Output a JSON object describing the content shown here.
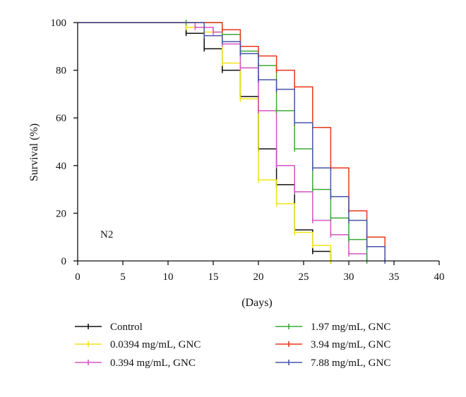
{
  "chart_data": {
    "type": "line",
    "step": true,
    "title": "",
    "xlabel": "(Days)",
    "ylabel": "Survival (%)",
    "xlim": [
      0,
      40
    ],
    "ylim": [
      0,
      100
    ],
    "x_ticks": [
      0,
      5,
      10,
      15,
      20,
      25,
      30,
      35,
      40
    ],
    "y_ticks": [
      0,
      20,
      40,
      60,
      80,
      100
    ],
    "grid": false,
    "legend_position": "bottom",
    "annotation": "N2",
    "series": [
      {
        "name": "Control",
        "color": "#111111",
        "x": [
          0,
          12,
          14,
          16,
          18,
          20,
          22,
          24,
          26,
          28
        ],
        "y": [
          100,
          95.5,
          89,
          80,
          69,
          47,
          32,
          13,
          4,
          0
        ]
      },
      {
        "name": "0.0394 mg/mL, GNC",
        "color": "#f2e21a",
        "x": [
          0,
          12,
          14,
          16,
          18,
          20,
          22,
          24,
          26,
          28
        ],
        "y": [
          100,
          98,
          96,
          83,
          68,
          34,
          24,
          12,
          6.5,
          0
        ]
      },
      {
        "name": "0.394 mg/mL, GNC",
        "color": "#d455c0",
        "x": [
          0,
          13,
          15,
          16,
          18,
          20,
          22,
          24,
          26,
          28,
          30,
          32
        ],
        "y": [
          100,
          98,
          96,
          91,
          81,
          63,
          40,
          29,
          17,
          11,
          3,
          0
        ]
      },
      {
        "name": "1.97 mg/mL, GNC",
        "color": "#3ea83a",
        "x": [
          0,
          12,
          16,
          18,
          20,
          22,
          24,
          26,
          28,
          30,
          32
        ],
        "y": [
          100,
          100,
          95,
          88,
          82,
          63,
          47,
          30,
          18,
          9,
          0
        ]
      },
      {
        "name": "3.94 mg/mL, GNC",
        "color": "#e8391e",
        "x": [
          0,
          16,
          18,
          20,
          22,
          24,
          26,
          28,
          30,
          32,
          34
        ],
        "y": [
          100,
          97,
          90,
          86,
          80,
          73,
          56,
          39,
          21,
          10,
          0
        ]
      },
      {
        "name": "7.88 mg/mL, GNC",
        "color": "#4856a8",
        "x": [
          0,
          14,
          16,
          18,
          20,
          22,
          24,
          26,
          28,
          30,
          32,
          34
        ],
        "y": [
          100,
          94.5,
          92,
          87,
          76,
          72,
          58,
          39,
          27,
          17,
          6,
          0
        ]
      }
    ]
  }
}
